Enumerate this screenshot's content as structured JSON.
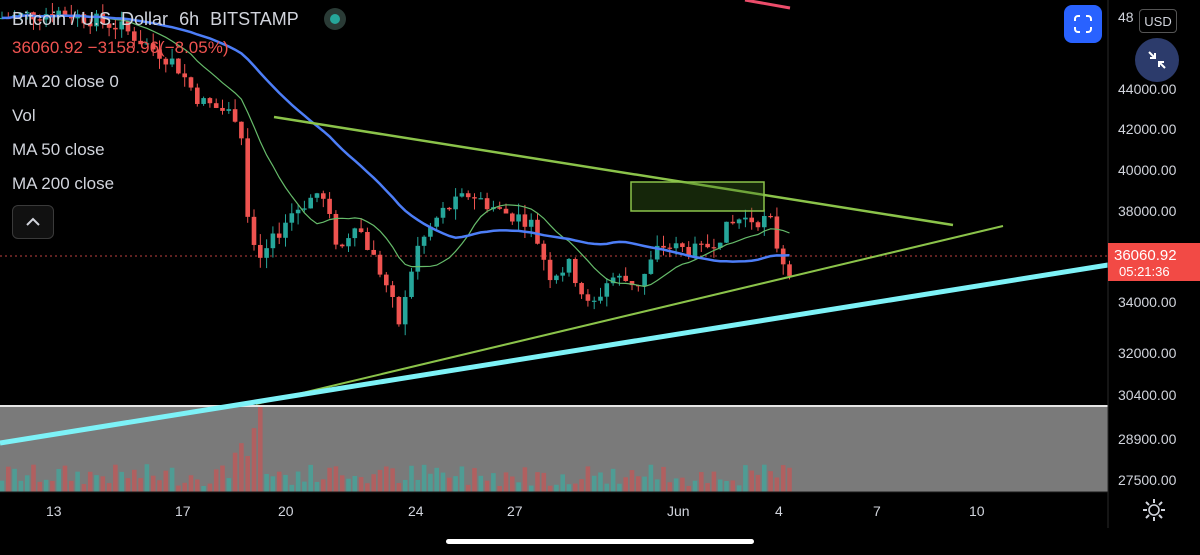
{
  "header": {
    "symbol": "Bitcoin / U.S. Dollar",
    "interval": "6h",
    "exchange": "BITSTAMP",
    "last": "36060.92",
    "change": "−3158.96",
    "change_pct": "(−8.05%)"
  },
  "indicators": [
    "MA 20 close 0",
    "Vol",
    "MA 50 close",
    "MA 200 close"
  ],
  "price_axis": {
    "labels": [
      "48",
      "44000.00",
      "42000.00",
      "40000.00",
      "38000.00",
      "34000.00",
      "32000.00",
      "30400.00",
      "28900.00",
      "27500.00"
    ],
    "current_price": "36060.92",
    "countdown": "05:21:36",
    "currency": "USD"
  },
  "time_axis": [
    "13",
    "17",
    "20",
    "24",
    "27",
    "Jun",
    "4",
    "7",
    "10"
  ],
  "colors": {
    "up": "#26a69a",
    "down": "#ef5350",
    "ma20": "#66bb6a",
    "ma50": "#4d7ef7",
    "trend_cyan": "#7df2f7",
    "triangle": "#8bc34a",
    "accent": "#2962ff"
  },
  "icons": [
    "fullscreen-icon",
    "scale-arrows-icon",
    "chevron-up-icon",
    "gear-icon",
    "live-dot-icon"
  ]
}
